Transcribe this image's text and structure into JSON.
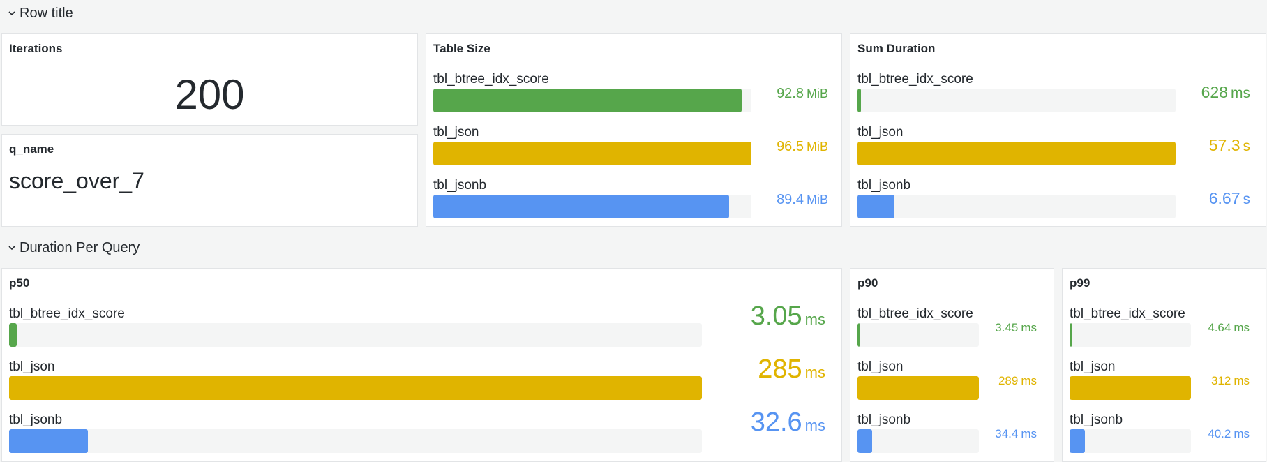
{
  "rows": [
    {
      "title": "Row title"
    },
    {
      "title": "Duration Per Query"
    }
  ],
  "colors": {
    "green": "#56a64b",
    "yellow": "#e0b400",
    "blue": "#5794f2"
  },
  "stat_panel": {
    "title": "Iterations",
    "value": "200"
  },
  "qname_panel": {
    "title": "q_name",
    "value": "score_over_7"
  },
  "gauge_panels": [
    {
      "title": "Table Size",
      "items": [
        {
          "label": "tbl_btree_idx_score",
          "num": "92.8",
          "unit": "MiB",
          "fraction": 0.97,
          "color": "green"
        },
        {
          "label": "tbl_json",
          "num": "96.5",
          "unit": "MiB",
          "fraction": 1.0,
          "color": "yellow"
        },
        {
          "label": "tbl_jsonb",
          "num": "89.4",
          "unit": "MiB",
          "fraction": 0.93,
          "color": "blue"
        }
      ]
    },
    {
      "title": "Sum Duration",
      "items": [
        {
          "label": "tbl_btree_idx_score",
          "num": "628",
          "unit": "ms",
          "fraction": 0.011,
          "color": "green"
        },
        {
          "label": "tbl_json",
          "num": "57.3",
          "unit": "s",
          "fraction": 1.0,
          "color": "yellow"
        },
        {
          "label": "tbl_jsonb",
          "num": "6.67",
          "unit": "s",
          "fraction": 0.116,
          "color": "blue"
        }
      ]
    },
    {
      "title": "p50",
      "items": [
        {
          "label": "tbl_btree_idx_score",
          "num": "3.05",
          "unit": "ms",
          "fraction": 0.011,
          "color": "green"
        },
        {
          "label": "tbl_json",
          "num": "285",
          "unit": "ms",
          "fraction": 1.0,
          "color": "yellow"
        },
        {
          "label": "tbl_jsonb",
          "num": "32.6",
          "unit": "ms",
          "fraction": 0.114,
          "color": "blue"
        }
      ]
    },
    {
      "title": "p90",
      "items": [
        {
          "label": "tbl_btree_idx_score",
          "num": "3.45",
          "unit": "ms",
          "fraction": 0.012,
          "color": "green"
        },
        {
          "label": "tbl_json",
          "num": "289",
          "unit": "ms",
          "fraction": 1.0,
          "color": "yellow"
        },
        {
          "label": "tbl_jsonb",
          "num": "34.4",
          "unit": "ms",
          "fraction": 0.119,
          "color": "blue"
        }
      ]
    },
    {
      "title": "p99",
      "items": [
        {
          "label": "tbl_btree_idx_score",
          "num": "4.64",
          "unit": "ms",
          "fraction": 0.015,
          "color": "green"
        },
        {
          "label": "tbl_json",
          "num": "312",
          "unit": "ms",
          "fraction": 1.0,
          "color": "yellow"
        },
        {
          "label": "tbl_jsonb",
          "num": "40.2",
          "unit": "ms",
          "fraction": 0.129,
          "color": "blue"
        }
      ]
    }
  ]
}
